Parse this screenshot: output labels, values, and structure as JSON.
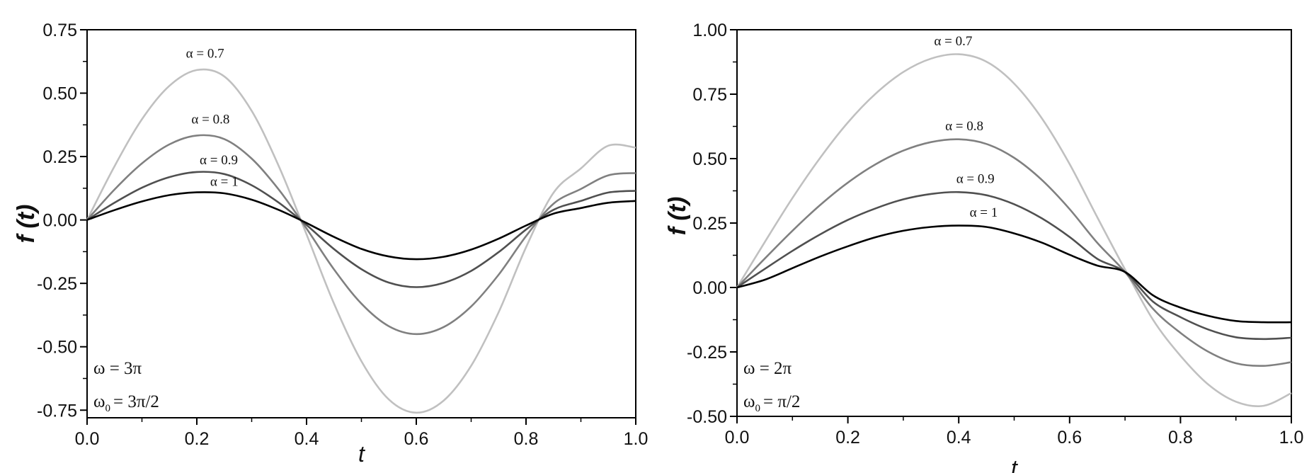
{
  "chart_data": [
    {
      "type": "line",
      "title": "",
      "xlabel": "t",
      "ylabel": "f (t)",
      "xlim": [
        0,
        1.0
      ],
      "ylim": [
        -0.78,
        0.75
      ],
      "xticks": [
        "0.0",
        "0.2",
        "0.4",
        "0.6",
        "0.8",
        "1.0"
      ],
      "yticks": [
        "0.75",
        "0.50",
        "0.25",
        "0.00",
        "-0.25",
        "-0.50",
        "-0.75"
      ],
      "grid": false,
      "annotations": [
        "ω = 3π",
        "ω",
        "0",
        "= 3π/2"
      ],
      "x": [
        0,
        0.05,
        0.1,
        0.15,
        0.2,
        0.25,
        0.3,
        0.35,
        0.4,
        0.45,
        0.5,
        0.55,
        0.6,
        0.65,
        0.7,
        0.75,
        0.8,
        0.85,
        0.9,
        0.95,
        1.0
      ],
      "series": [
        {
          "name": "α = 0.7",
          "color": "#c0c0c0",
          "values": [
            0,
            0.212,
            0.397,
            0.529,
            0.591,
            0.566,
            0.43,
            0.209,
            -0.057,
            -0.33,
            -0.557,
            -0.708,
            -0.76,
            -0.712,
            -0.575,
            -0.364,
            -0.108,
            0.107,
            0.203,
            0.293,
            0.285
          ]
        },
        {
          "name": "α = 0.8",
          "color": "#808080",
          "values": [
            0,
            0.12,
            0.223,
            0.298,
            0.333,
            0.319,
            0.242,
            0.118,
            -0.034,
            -0.195,
            -0.33,
            -0.419,
            -0.45,
            -0.422,
            -0.341,
            -0.216,
            -0.064,
            0.064,
            0.122,
            0.176,
            0.185
          ]
        },
        {
          "name": "α = 0.9",
          "color": "#505050",
          "values": [
            0,
            0.068,
            0.127,
            0.169,
            0.189,
            0.181,
            0.137,
            0.067,
            -0.02,
            -0.115,
            -0.194,
            -0.247,
            -0.265,
            -0.248,
            -0.201,
            -0.127,
            -0.038,
            0.04,
            0.075,
            0.108,
            0.115
          ]
        },
        {
          "name": "α = 1",
          "color": "#000000",
          "values": [
            0,
            0.039,
            0.073,
            0.098,
            0.109,
            0.105,
            0.08,
            0.039,
            -0.012,
            -0.067,
            -0.114,
            -0.144,
            -0.155,
            -0.145,
            -0.117,
            -0.074,
            -0.022,
            0.025,
            0.047,
            0.068,
            0.075
          ]
        }
      ]
    },
    {
      "type": "line",
      "title": "",
      "xlabel": "t",
      "ylabel": "f (t)",
      "xlim": [
        0,
        1.0
      ],
      "ylim": [
        -0.5,
        1.0
      ],
      "xticks": [
        "0.0",
        "0.2",
        "0.4",
        "0.6",
        "0.8",
        "1.0"
      ],
      "yticks": [
        "1.00",
        "0.75",
        "0.50",
        "0.25",
        "0.00",
        "-0.25",
        "-0.50"
      ],
      "grid": false,
      "annotations": [
        "ω = 2π",
        "ω",
        "0",
        "= π/2"
      ],
      "x": [
        0,
        0.05,
        0.1,
        0.15,
        0.2,
        0.25,
        0.3,
        0.35,
        0.4,
        0.45,
        0.5,
        0.55,
        0.6,
        0.65,
        0.7,
        0.75,
        0.8,
        0.85,
        0.9,
        0.95,
        1.0
      ],
      "series": [
        {
          "name": "α = 0.7",
          "color": "#c0c0c0",
          "values": [
            0,
            0.176,
            0.347,
            0.503,
            0.64,
            0.752,
            0.836,
            0.888,
            0.905,
            0.876,
            0.791,
            0.656,
            0.479,
            0.272,
            0.07,
            -0.124,
            -0.265,
            -0.376,
            -0.443,
            -0.459,
            -0.41
          ]
        },
        {
          "name": "α = 0.8",
          "color": "#808080",
          "values": [
            0,
            0.112,
            0.22,
            0.32,
            0.407,
            0.478,
            0.531,
            0.564,
            0.575,
            0.557,
            0.503,
            0.417,
            0.304,
            0.173,
            0.06,
            -0.082,
            -0.176,
            -0.249,
            -0.294,
            -0.304,
            -0.29
          ]
        },
        {
          "name": "α = 0.9",
          "color": "#505050",
          "values": [
            0,
            0.072,
            0.142,
            0.206,
            0.262,
            0.307,
            0.342,
            0.363,
            0.37,
            0.358,
            0.323,
            0.268,
            0.196,
            0.111,
            0.06,
            -0.054,
            -0.115,
            -0.163,
            -0.193,
            -0.2,
            -0.195
          ]
        },
        {
          "name": "α = 1",
          "color": "#000000",
          "values": [
            0,
            0.03,
            0.075,
            0.12,
            0.16,
            0.195,
            0.22,
            0.235,
            0.24,
            0.235,
            0.21,
            0.174,
            0.127,
            0.085,
            0.06,
            -0.03,
            -0.078,
            -0.11,
            -0.13,
            -0.135,
            -0.135
          ]
        }
      ]
    }
  ]
}
